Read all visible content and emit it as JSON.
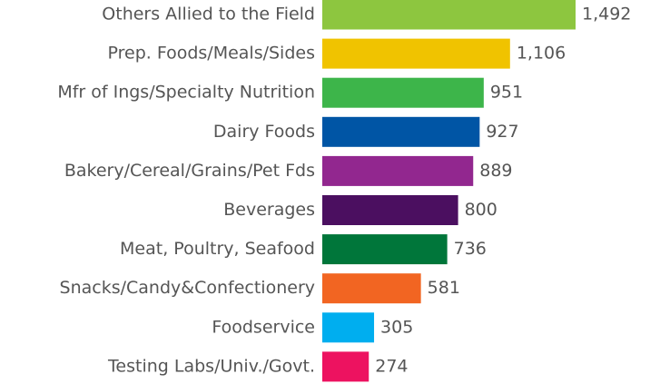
{
  "chart_data": {
    "type": "bar",
    "orientation": "horizontal",
    "categories": [
      "Others Allied to the Field",
      "Prep. Foods/Meals/Sides",
      "Mfr of Ings/Specialty Nutrition",
      "Dairy Foods",
      "Bakery/Cereal/Grains/Pet Fds",
      "Beverages",
      "Meat, Poultry, Seafood",
      "Snacks/Candy&Confectionery",
      "Foodservice",
      "Testing Labs/Univ./Govt."
    ],
    "values": [
      1492,
      1106,
      951,
      927,
      889,
      800,
      736,
      581,
      305,
      274
    ],
    "value_labels": [
      "1,492",
      "1,106",
      "951",
      "927",
      "889",
      "800",
      "736",
      "581",
      "305",
      "274"
    ],
    "colors": [
      "#8dc63f",
      "#f0c300",
      "#3db54a",
      "#0055a5",
      "#92278f",
      "#4b0f60",
      "#00763a",
      "#f26522",
      "#00aeef",
      "#ed1260"
    ]
  }
}
